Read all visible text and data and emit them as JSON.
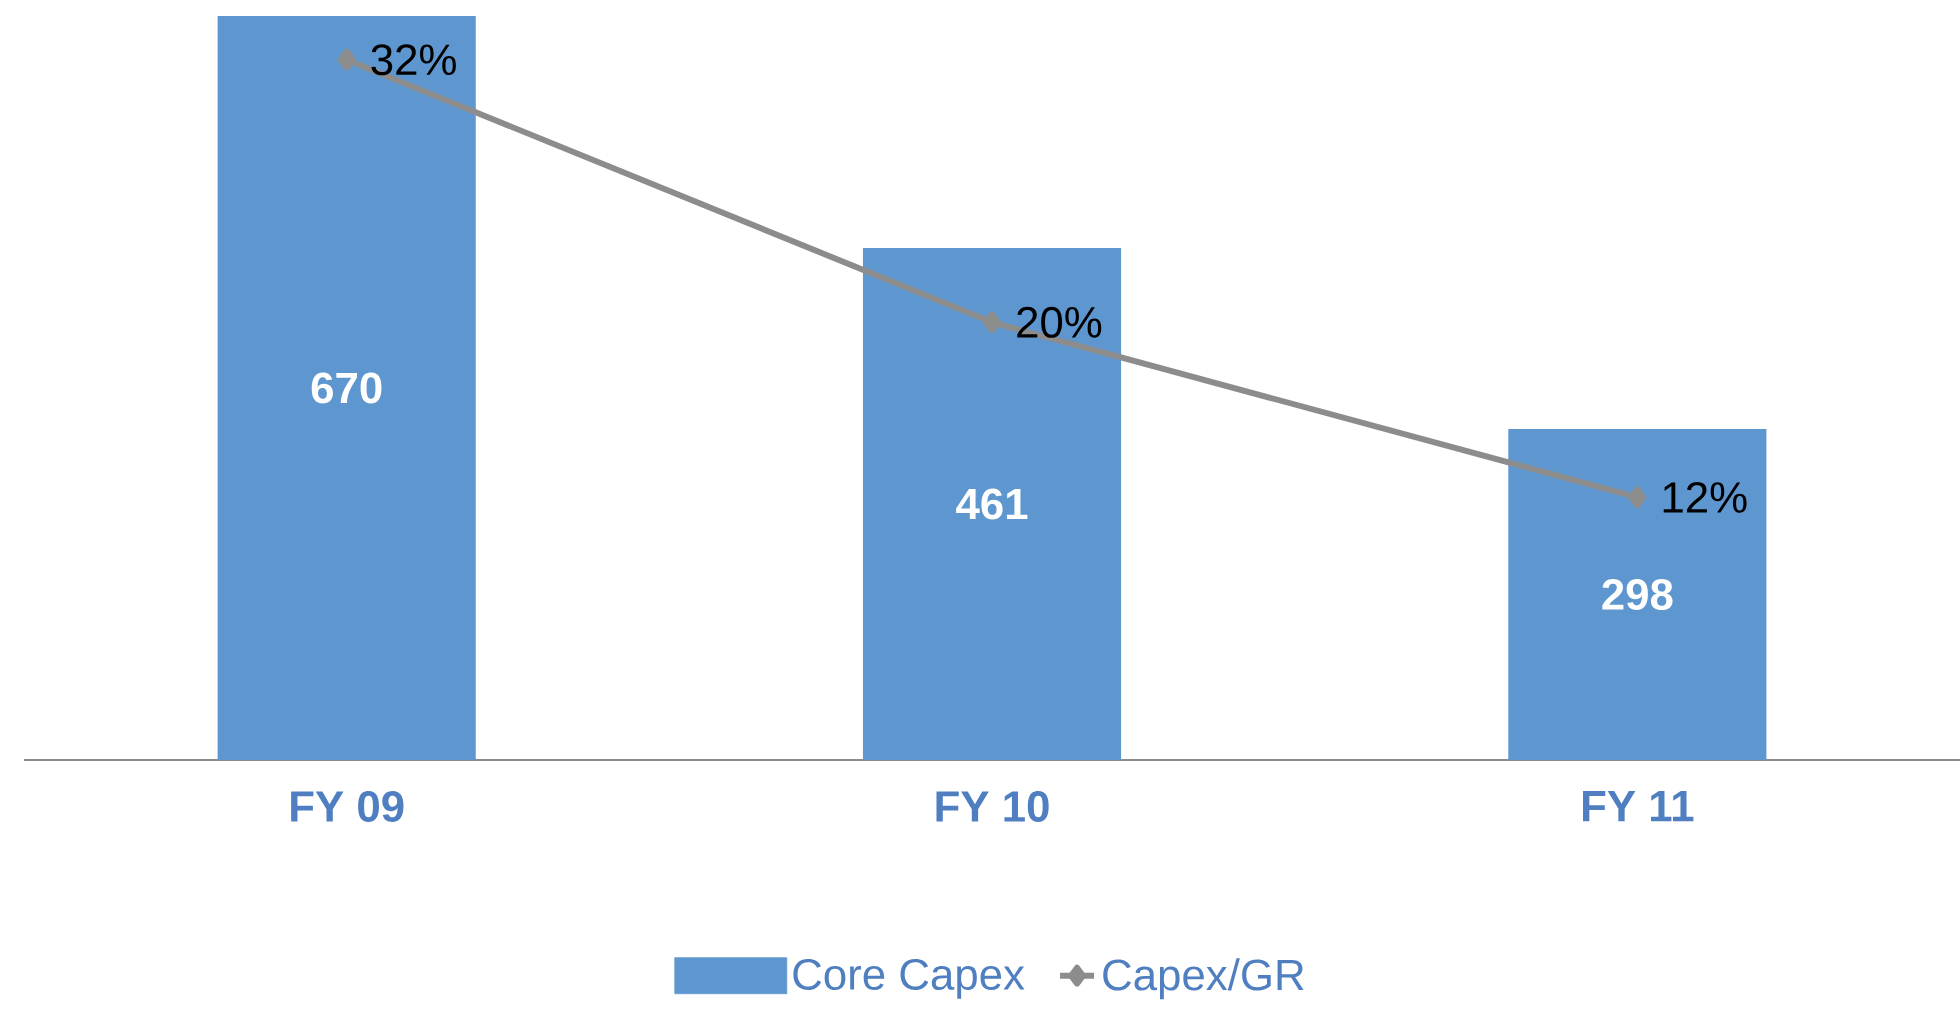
{
  "chart_data": {
    "type": "bar",
    "categories": [
      "FY 09",
      "FY 10",
      "FY 11"
    ],
    "series": [
      {
        "name": "Core Capex",
        "color": "#5e97cf",
        "values": [
          670,
          461,
          298
        ],
        "value_labels": [
          "670",
          "461",
          "298"
        ]
      },
      {
        "name": "Capex/GR",
        "type": "line",
        "axis": "y2",
        "color": "#8c8c8c",
        "values": [
          32,
          20,
          12
        ],
        "value_labels": [
          "32%",
          "20%",
          "12%"
        ]
      }
    ],
    "marker": "diamond",
    "legend": "bottom",
    "tick_labels": "x"
  }
}
